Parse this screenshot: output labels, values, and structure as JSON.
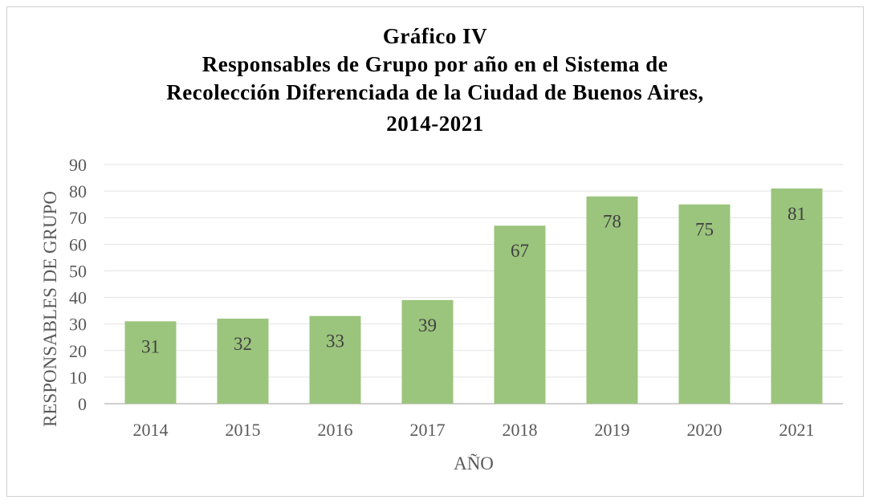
{
  "chart_data": {
    "type": "bar",
    "title_lines": [
      "Gráfico IV",
      "Responsables de Grupo por año en el Sistema de",
      "Recolección Diferenciada de la Ciudad de Buenos Aires,",
      "2014-2021"
    ],
    "categories": [
      "2014",
      "2015",
      "2016",
      "2017",
      "2018",
      "2019",
      "2020",
      "2021"
    ],
    "values": [
      31,
      32,
      33,
      39,
      67,
      78,
      75,
      81
    ],
    "xlabel": "AÑO",
    "ylabel": "RESPONSABLES DE GRUPO",
    "ylim": [
      0,
      90
    ],
    "yticks": [
      0,
      10,
      20,
      30,
      40,
      50,
      60,
      70,
      80,
      90
    ],
    "grid": true,
    "legend": "none",
    "bar_color": "#9BC47D"
  }
}
